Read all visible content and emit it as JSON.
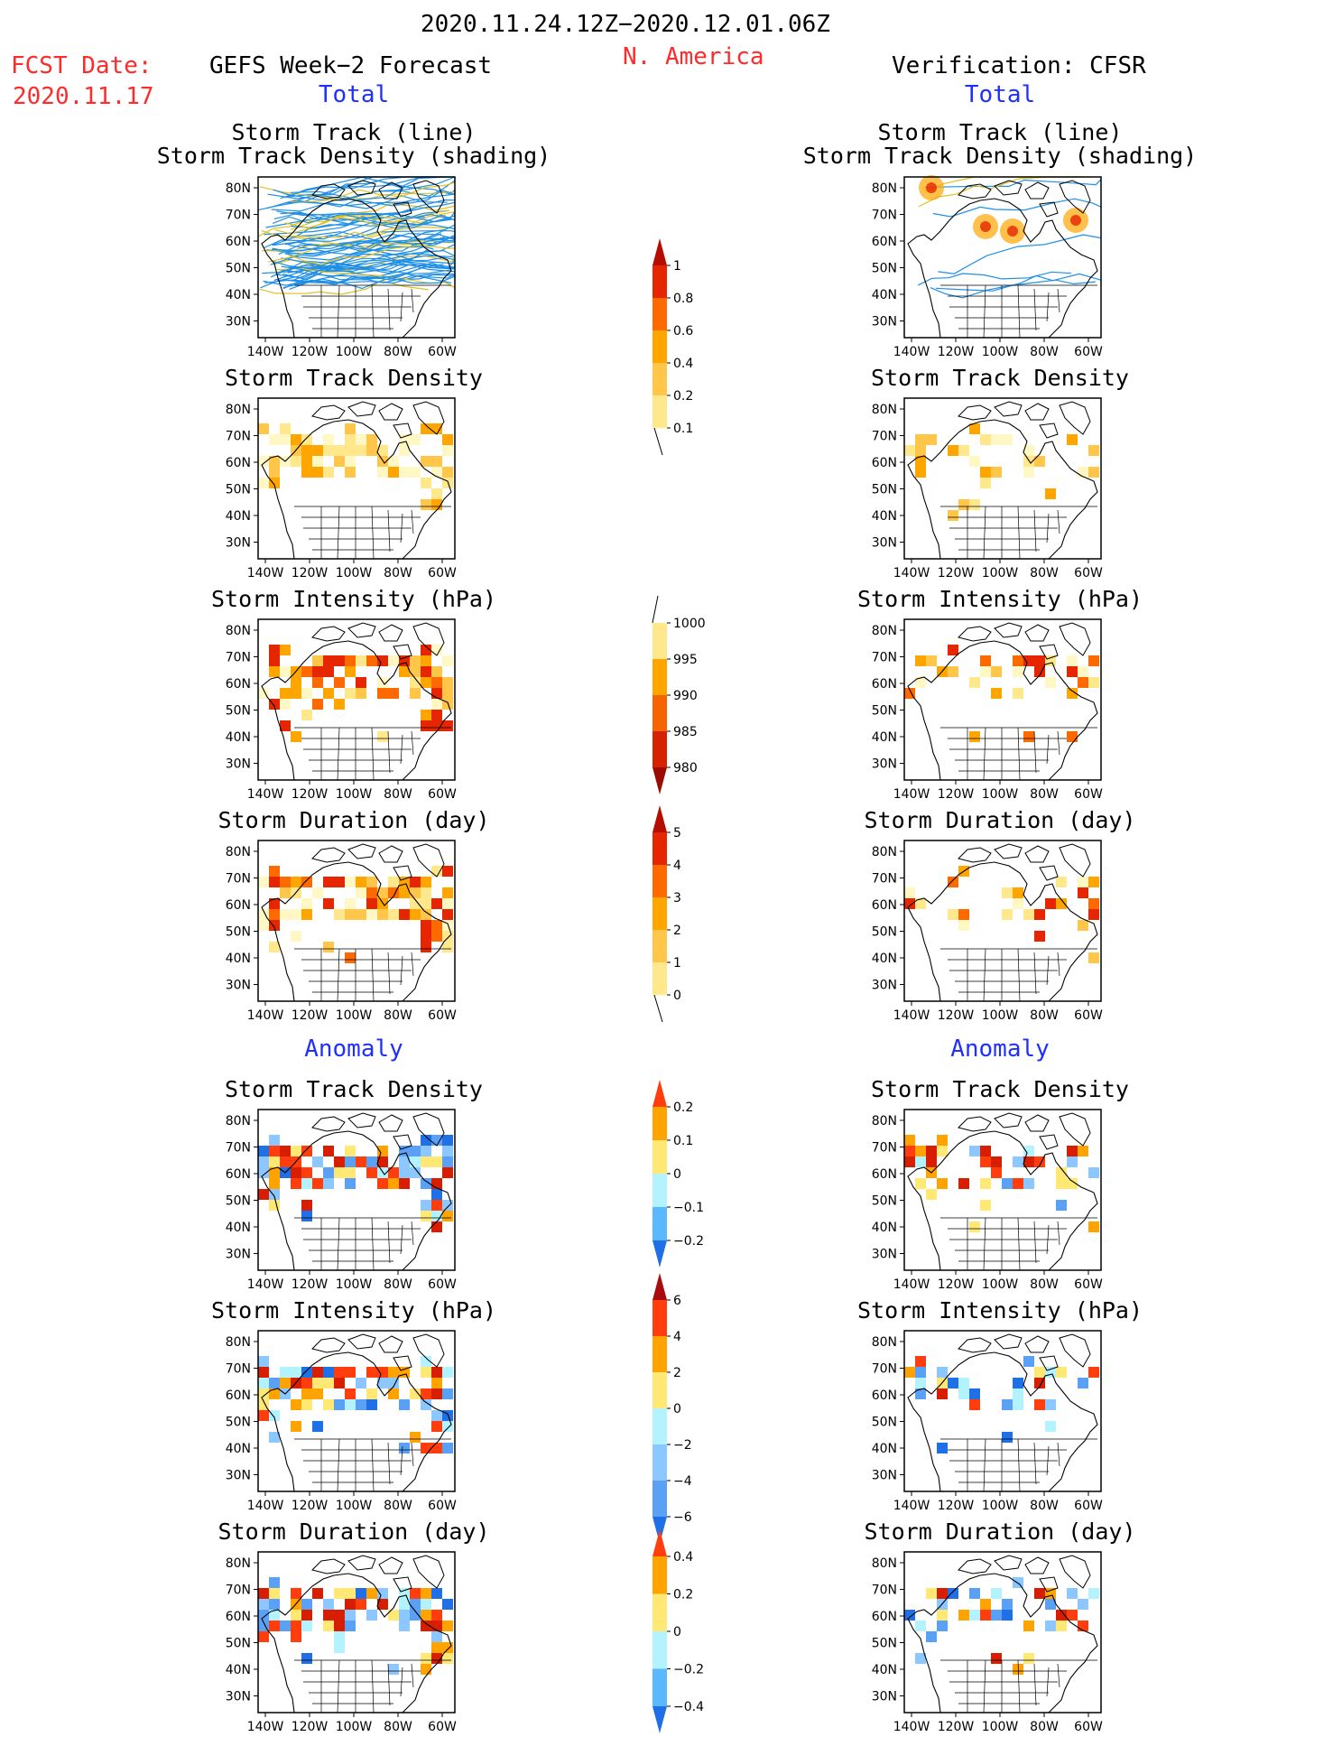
{
  "header": {
    "date_range": "2020.11.24.12Z−2020.12.01.06Z",
    "region": "N. America",
    "fcst_label": "FCST Date:",
    "fcst_date": "2020.11.17",
    "left_title": "GEFS Week−2 Forecast",
    "right_title": "Verification: CFSR",
    "total_label": "Total",
    "anomaly_label": "Anomaly"
  },
  "panel_titles": {
    "track_line": "Storm Track (line)",
    "track_shading": "Storm Track Density (shading)",
    "density": "Storm Track Density",
    "intensity": "Storm Intensity (hPa)",
    "duration": "Storm Duration (day)"
  },
  "axes": {
    "lat_ticks": [
      "80N",
      "70N",
      "60N",
      "50N",
      "40N",
      "30N"
    ],
    "lon_ticks": [
      "140W",
      "120W",
      "100W",
      "80W",
      "60W"
    ]
  },
  "colorbars": [
    {
      "labels": [
        "1",
        "0.8",
        "0.6",
        "0.4",
        "0.2",
        "0.1"
      ],
      "colors": [
        "#b50d00",
        "#e52600",
        "#ff6a00",
        "#ffa500",
        "#ffc64a",
        "#ffe88c",
        "#fff8c4"
      ]
    },
    {
      "labels": [
        "1000",
        "995",
        "990",
        "985",
        "980"
      ],
      "colors": [
        "#fff8c4",
        "#ffe88c",
        "#ffa500",
        "#f56400",
        "#d52200",
        "#9a0c00"
      ]
    },
    {
      "labels": [
        "5",
        "4",
        "3",
        "2",
        "1",
        "0"
      ],
      "colors": [
        "#b50d00",
        "#e52600",
        "#ff6a00",
        "#ffa500",
        "#ffc64a",
        "#ffe88c",
        "#fff8c4"
      ]
    },
    {
      "labels": [
        "0.2",
        "0.1",
        "0",
        "−0.1",
        "−0.2"
      ],
      "colors": [
        "#ff3d0d",
        "#ffa300",
        "#ffe873",
        "#b3f2ff",
        "#5ab8ff",
        "#1f6fe6"
      ]
    },
    {
      "labels": [
        "6",
        "4",
        "2",
        "0",
        "−2",
        "−4",
        "−6"
      ],
      "colors": [
        "#a80d0d",
        "#ff3d0d",
        "#ffa300",
        "#ffe873",
        "#b3f2ff",
        "#8cc8ff",
        "#5aa0f5",
        "#1f6fe6"
      ]
    },
    {
      "labels": [
        "0.4",
        "0.2",
        "0",
        "−0.2",
        "−0.4"
      ],
      "colors": [
        "#ff3d0d",
        "#ffa300",
        "#ffe873",
        "#b3f2ff",
        "#5ab8ff",
        "#1f6fe6"
      ]
    }
  ]
}
